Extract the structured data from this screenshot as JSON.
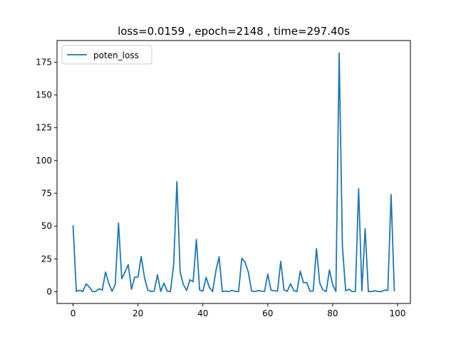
{
  "chart_data": {
    "type": "line",
    "title": "loss=0.0159 , epoch=2148 , time=297.40s",
    "xlabel": "",
    "ylabel": "",
    "xlim": [
      -4.95,
      103.95
    ],
    "ylim": [
      -9.0,
      191.5
    ],
    "grid": false,
    "legend": "top-left",
    "x_ticks": [
      0,
      20,
      40,
      60,
      80,
      100
    ],
    "y_ticks": [
      0,
      25,
      50,
      75,
      100,
      125,
      150,
      175
    ],
    "series": [
      {
        "name": "poten_loss",
        "color": "#1f77b4",
        "x": [
          0,
          1,
          2,
          3,
          4,
          5,
          6,
          7,
          8,
          9,
          10,
          11,
          12,
          13,
          14,
          15,
          16,
          17,
          18,
          19,
          20,
          21,
          22,
          23,
          24,
          25,
          26,
          27,
          28,
          29,
          30,
          31,
          32,
          33,
          34,
          35,
          36,
          37,
          38,
          39,
          40,
          41,
          42,
          43,
          44,
          45,
          46,
          47,
          48,
          49,
          50,
          51,
          52,
          53,
          54,
          55,
          56,
          57,
          58,
          59,
          60,
          61,
          62,
          63,
          64,
          65,
          66,
          67,
          68,
          69,
          70,
          71,
          72,
          73,
          74,
          75,
          76,
          77,
          78,
          79,
          80,
          81,
          82,
          83,
          84,
          85,
          86,
          87,
          88,
          89,
          90,
          91,
          92,
          93,
          94,
          95,
          96,
          97,
          98,
          99
        ],
        "values": [
          50.3,
          0.2,
          1.1,
          0.1,
          6.0,
          3.5,
          0.1,
          0.2,
          2.2,
          1.2,
          15.0,
          6.4,
          0.3,
          5.5,
          52.3,
          9.8,
          15.0,
          20.7,
          1.9,
          11.1,
          11.1,
          26.8,
          10.9,
          1.4,
          0.1,
          0.5,
          12.9,
          0.2,
          6.6,
          0.4,
          0.1,
          20.6,
          84.0,
          14.9,
          5.4,
          0.9,
          9.1,
          7.6,
          39.8,
          1.3,
          0.4,
          10.9,
          3.2,
          0.1,
          15.7,
          26.6,
          0.1,
          0.5,
          0.1,
          1.0,
          0.2,
          0.1,
          25.5,
          22.5,
          15.0,
          0.5,
          0.1,
          0.8,
          0.4,
          0.2,
          13.4,
          1.1,
          0.7,
          0.5,
          23.1,
          1.3,
          0.3,
          6.0,
          0.9,
          0.1,
          15.7,
          6.8,
          7.0,
          0.4,
          0.5,
          32.8,
          6.7,
          1.3,
          0.1,
          16.6,
          5.3,
          0.2,
          182.0,
          34.5,
          0.7,
          1.9,
          0.1,
          0.3,
          78.4,
          0.6,
          48.0,
          0.1,
          0.1,
          0.7,
          0.1,
          0.1,
          1.2,
          1.0,
          74.1,
          0.7
        ]
      }
    ]
  }
}
